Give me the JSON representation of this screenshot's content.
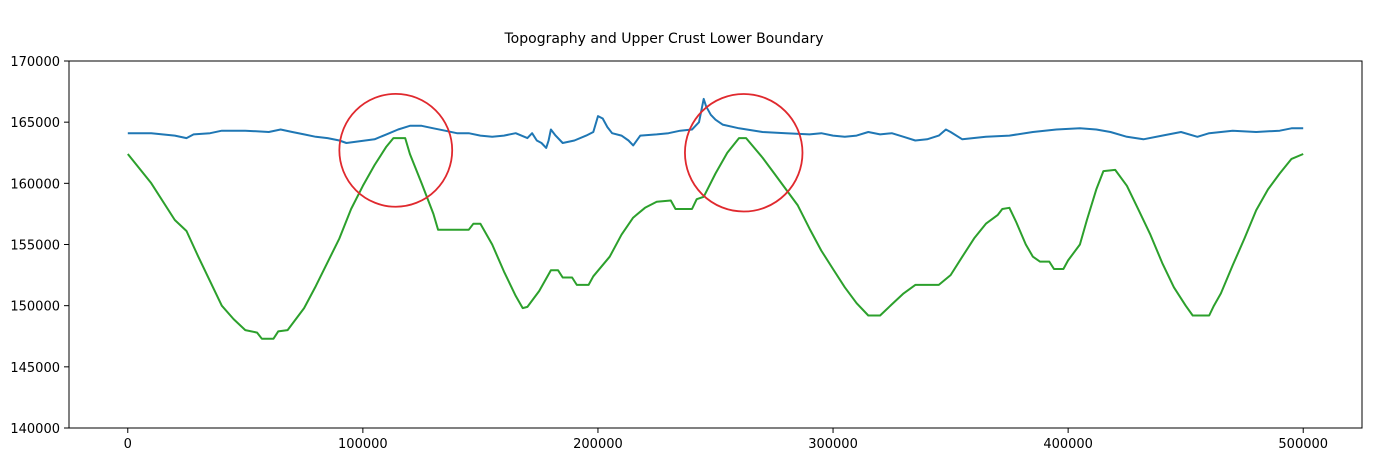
{
  "chart_data": {
    "type": "line",
    "title": "Topography and Upper Crust Lower Boundary",
    "xlabel": "",
    "ylabel": "",
    "xlim": [
      -25000,
      525000
    ],
    "ylim": [
      140000,
      170000
    ],
    "x_ticks": [
      0,
      100000,
      200000,
      300000,
      400000,
      500000
    ],
    "x_tick_labels": [
      "0",
      "100000",
      "200000",
      "300000",
      "400000",
      "500000"
    ],
    "y_ticks": [
      140000,
      145000,
      150000,
      155000,
      160000,
      165000,
      170000
    ],
    "y_tick_labels": [
      "140000",
      "145000",
      "150000",
      "155000",
      "160000",
      "165000",
      "170000"
    ],
    "grid": false,
    "series": [
      {
        "color": "#1f77b4",
        "points": [
          [
            0,
            164100
          ],
          [
            10000,
            164100
          ],
          [
            20000,
            163900
          ],
          [
            25000,
            163700
          ],
          [
            28000,
            164000
          ],
          [
            35000,
            164100
          ],
          [
            40000,
            164300
          ],
          [
            50000,
            164300
          ],
          [
            60000,
            164200
          ],
          [
            65000,
            164400
          ],
          [
            70000,
            164200
          ],
          [
            75000,
            164000
          ],
          [
            80000,
            163800
          ],
          [
            85000,
            163700
          ],
          [
            90000,
            163500
          ],
          [
            93000,
            163300
          ],
          [
            97000,
            163400
          ],
          [
            105000,
            163600
          ],
          [
            110000,
            164000
          ],
          [
            115000,
            164400
          ],
          [
            120000,
            164700
          ],
          [
            125000,
            164700
          ],
          [
            130000,
            164500
          ],
          [
            135000,
            164300
          ],
          [
            140000,
            164100
          ],
          [
            145000,
            164100
          ],
          [
            150000,
            163900
          ],
          [
            155000,
            163800
          ],
          [
            160000,
            163900
          ],
          [
            165000,
            164100
          ],
          [
            170000,
            163700
          ],
          [
            172000,
            164100
          ],
          [
            174000,
            163500
          ],
          [
            176000,
            163300
          ],
          [
            178000,
            162900
          ],
          [
            179000,
            163500
          ],
          [
            180000,
            164400
          ],
          [
            182000,
            163900
          ],
          [
            185000,
            163300
          ],
          [
            190000,
            163500
          ],
          [
            195000,
            163900
          ],
          [
            198000,
            164200
          ],
          [
            200000,
            165500
          ],
          [
            202000,
            165300
          ],
          [
            204000,
            164600
          ],
          [
            206000,
            164100
          ],
          [
            210000,
            163900
          ],
          [
            213000,
            163500
          ],
          [
            215000,
            163100
          ],
          [
            218000,
            163900
          ],
          [
            225000,
            164000
          ],
          [
            230000,
            164100
          ],
          [
            235000,
            164300
          ],
          [
            240000,
            164400
          ],
          [
            243000,
            165000
          ],
          [
            245000,
            166900
          ],
          [
            246000,
            166300
          ],
          [
            248000,
            165600
          ],
          [
            250000,
            165200
          ],
          [
            253000,
            164800
          ],
          [
            260000,
            164500
          ],
          [
            270000,
            164200
          ],
          [
            280000,
            164100
          ],
          [
            290000,
            164000
          ],
          [
            295000,
            164100
          ],
          [
            300000,
            163900
          ],
          [
            305000,
            163800
          ],
          [
            310000,
            163900
          ],
          [
            315000,
            164200
          ],
          [
            320000,
            164000
          ],
          [
            325000,
            164100
          ],
          [
            330000,
            163800
          ],
          [
            335000,
            163500
          ],
          [
            340000,
            163600
          ],
          [
            345000,
            163900
          ],
          [
            348000,
            164400
          ],
          [
            350000,
            164200
          ],
          [
            355000,
            163600
          ],
          [
            365000,
            163800
          ],
          [
            375000,
            163900
          ],
          [
            385000,
            164200
          ],
          [
            395000,
            164400
          ],
          [
            405000,
            164500
          ],
          [
            412000,
            164400
          ],
          [
            418000,
            164200
          ],
          [
            425000,
            163800
          ],
          [
            432000,
            163600
          ],
          [
            440000,
            163900
          ],
          [
            448000,
            164200
          ],
          [
            455000,
            163800
          ],
          [
            460000,
            164100
          ],
          [
            470000,
            164300
          ],
          [
            480000,
            164200
          ],
          [
            490000,
            164300
          ],
          [
            495000,
            164500
          ],
          [
            500000,
            164500
          ]
        ]
      },
      {
        "color": "#2ca02c",
        "points": [
          [
            0,
            162400
          ],
          [
            10000,
            160000
          ],
          [
            20000,
            157000
          ],
          [
            25000,
            156100
          ],
          [
            30000,
            154000
          ],
          [
            40000,
            150000
          ],
          [
            45000,
            148900
          ],
          [
            50000,
            148000
          ],
          [
            55000,
            147800
          ],
          [
            57000,
            147300
          ],
          [
            62000,
            147300
          ],
          [
            64000,
            147900
          ],
          [
            68000,
            148000
          ],
          [
            75000,
            149800
          ],
          [
            80000,
            151600
          ],
          [
            90000,
            155500
          ],
          [
            95000,
            157900
          ],
          [
            100000,
            159800
          ],
          [
            105000,
            161500
          ],
          [
            110000,
            163000
          ],
          [
            113000,
            163700
          ],
          [
            118000,
            163700
          ],
          [
            120000,
            162400
          ],
          [
            125000,
            160000
          ],
          [
            130000,
            157500
          ],
          [
            132000,
            156200
          ],
          [
            145000,
            156200
          ],
          [
            147000,
            156700
          ],
          [
            150000,
            156700
          ],
          [
            155000,
            155000
          ],
          [
            160000,
            152800
          ],
          [
            165000,
            150800
          ],
          [
            168000,
            149800
          ],
          [
            170000,
            149900
          ],
          [
            175000,
            151200
          ],
          [
            180000,
            152900
          ],
          [
            183000,
            152900
          ],
          [
            185000,
            152300
          ],
          [
            189000,
            152300
          ],
          [
            191000,
            151700
          ],
          [
            196000,
            151700
          ],
          [
            198000,
            152400
          ],
          [
            205000,
            154000
          ],
          [
            210000,
            155800
          ],
          [
            215000,
            157200
          ],
          [
            220000,
            158000
          ],
          [
            225000,
            158500
          ],
          [
            231000,
            158600
          ],
          [
            233000,
            157900
          ],
          [
            240000,
            157900
          ],
          [
            242000,
            158700
          ],
          [
            245000,
            158900
          ],
          [
            250000,
            160800
          ],
          [
            255000,
            162500
          ],
          [
            260000,
            163700
          ],
          [
            263000,
            163700
          ],
          [
            270000,
            162100
          ],
          [
            275000,
            160800
          ],
          [
            280000,
            159500
          ],
          [
            285000,
            158200
          ],
          [
            290000,
            156300
          ],
          [
            295000,
            154500
          ],
          [
            300000,
            153000
          ],
          [
            305000,
            151500
          ],
          [
            310000,
            150200
          ],
          [
            315000,
            149200
          ],
          [
            320000,
            149200
          ],
          [
            325000,
            150100
          ],
          [
            330000,
            151000
          ],
          [
            335000,
            151700
          ],
          [
            345000,
            151700
          ],
          [
            350000,
            152500
          ],
          [
            355000,
            154000
          ],
          [
            360000,
            155500
          ],
          [
            365000,
            156700
          ],
          [
            370000,
            157400
          ],
          [
            372000,
            157900
          ],
          [
            375000,
            158000
          ],
          [
            378000,
            156800
          ],
          [
            382000,
            155000
          ],
          [
            385000,
            154000
          ],
          [
            388000,
            153600
          ],
          [
            392000,
            153600
          ],
          [
            394000,
            153000
          ],
          [
            398000,
            153000
          ],
          [
            400000,
            153700
          ],
          [
            405000,
            155000
          ],
          [
            408000,
            157000
          ],
          [
            412000,
            159500
          ],
          [
            415000,
            161000
          ],
          [
            420000,
            161100
          ],
          [
            425000,
            159800
          ],
          [
            430000,
            157800
          ],
          [
            435000,
            155800
          ],
          [
            440000,
            153500
          ],
          [
            445000,
            151500
          ],
          [
            450000,
            150000
          ],
          [
            453000,
            149200
          ],
          [
            460000,
            149200
          ],
          [
            462000,
            150000
          ],
          [
            465000,
            151000
          ],
          [
            470000,
            153300
          ],
          [
            475000,
            155500
          ],
          [
            480000,
            157800
          ],
          [
            485000,
            159500
          ],
          [
            490000,
            160800
          ],
          [
            495000,
            162000
          ],
          [
            500000,
            162400
          ]
        ]
      }
    ],
    "annotations": [
      {
        "type": "circle",
        "color": "#e0292e",
        "center": [
          114000,
          162700
        ],
        "radius_x": 24000
      },
      {
        "type": "circle",
        "color": "#e0292e",
        "center": [
          262000,
          162500
        ],
        "radius_x": 25000
      }
    ]
  }
}
